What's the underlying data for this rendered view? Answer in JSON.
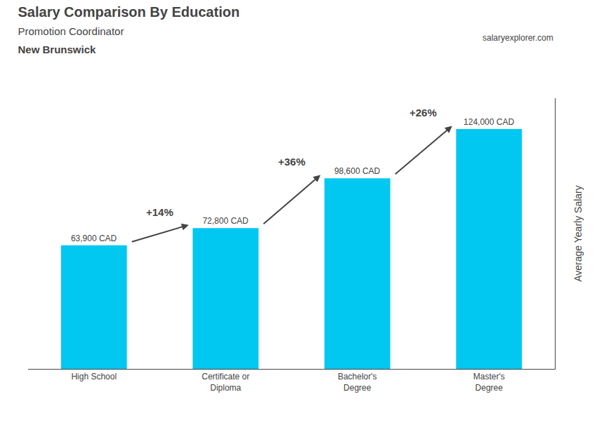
{
  "chart_data": {
    "type": "bar",
    "title": "Salary Comparison By Education",
    "subtitle": "Promotion Coordinator",
    "location": "New Brunswick",
    "site": "salaryexplorer.com",
    "categories": [
      "High School",
      "Certificate or\nDiploma",
      "Bachelor's\nDegree",
      "Master's\nDegree"
    ],
    "values": [
      63900,
      72800,
      98600,
      124000
    ],
    "value_labels": [
      "63,900 CAD",
      "72,800 CAD",
      "98,600 CAD",
      "124,000 CAD"
    ],
    "data_labels": true,
    "annotations": [
      "+14%",
      "+36%",
      "+26%"
    ],
    "color": "#00c8f0",
    "ylabel": "Average Yearly Salary",
    "ylim": [
      0,
      140000
    ],
    "grid": false,
    "tick_labels": "x"
  }
}
